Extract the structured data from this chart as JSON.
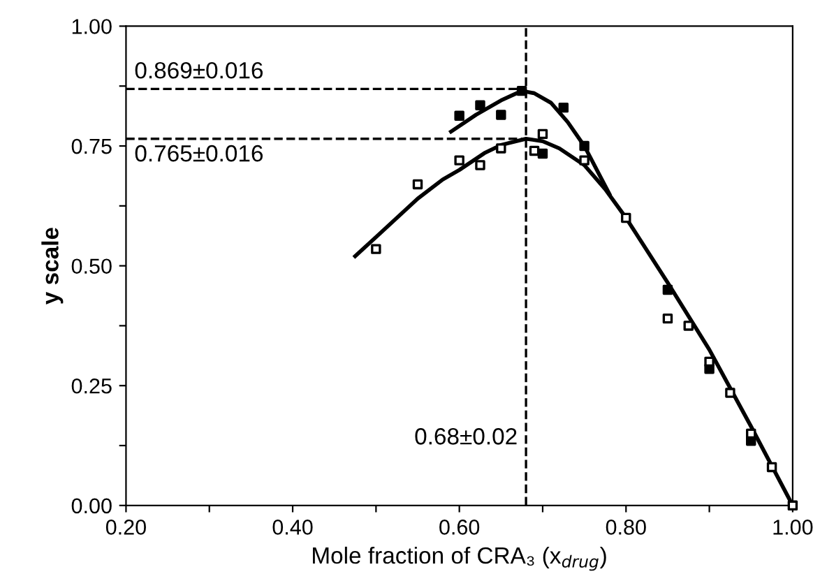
{
  "chart_data": {
    "type": "scatter",
    "xlabel": "Mole fraction of CRA₃ (x$_{drug}$)",
    "ylabel": "y scale",
    "xlim": [
      0.2,
      1.0
    ],
    "ylim": [
      0.0,
      1.0
    ],
    "xticks": [
      {
        "value": 0.2,
        "label": "0.20"
      },
      {
        "value": 0.3,
        "label": null
      },
      {
        "value": 0.4,
        "label": "0.40"
      },
      {
        "value": 0.5,
        "label": null
      },
      {
        "value": 0.6,
        "label": "0.60"
      },
      {
        "value": 0.7,
        "label": null
      },
      {
        "value": 0.8,
        "label": "0.80"
      },
      {
        "value": 0.9,
        "label": null
      },
      {
        "value": 1.0,
        "label": "1.00"
      }
    ],
    "yticks": [
      {
        "value": 0.0,
        "label": "0.00"
      },
      {
        "value": 0.125,
        "label": null
      },
      {
        "value": 0.25,
        "label": "0.25"
      },
      {
        "value": 0.375,
        "label": null
      },
      {
        "value": 0.5,
        "label": "0.50"
      },
      {
        "value": 0.625,
        "label": null
      },
      {
        "value": 0.75,
        "label": "0.75"
      },
      {
        "value": 0.875,
        "label": null
      },
      {
        "value": 1.0,
        "label": "1.00"
      }
    ],
    "grid": false,
    "legend": false,
    "series": [
      {
        "marker": "square",
        "color": "#000000",
        "x": [
          0.6,
          0.625,
          0.65,
          0.675,
          0.7,
          0.725,
          0.75,
          0.8,
          0.85,
          0.9,
          0.95
        ],
        "values": [
          0.813,
          0.835,
          0.815,
          0.865,
          0.734,
          0.83,
          0.75,
          null,
          0.45,
          0.285,
          0.135
        ]
      },
      {
        "marker": "square",
        "color": "#ffffff",
        "x": [
          0.5,
          0.55,
          0.6,
          0.625,
          0.65,
          0.69,
          0.7,
          0.75,
          0.8,
          0.85,
          0.875,
          0.9,
          0.925,
          0.95,
          0.975,
          1.0
        ],
        "values": [
          0.535,
          0.67,
          0.72,
          0.71,
          0.745,
          0.74,
          0.775,
          0.72,
          0.6,
          0.39,
          0.375,
          0.3,
          0.235,
          0.15,
          0.08,
          0.0
        ]
      },
      {
        "type": "line",
        "color": "#000000",
        "x": [
          0.59,
          0.62,
          0.65,
          0.675,
          0.69,
          0.71,
          0.73,
          0.75,
          0.78
        ],
        "values": [
          0.78,
          0.815,
          0.845,
          0.865,
          0.86,
          0.84,
          0.8,
          0.75,
          0.65
        ]
      },
      {
        "type": "line",
        "color": "#000000",
        "x": [
          0.475,
          0.5,
          0.55,
          0.58,
          0.6,
          0.63,
          0.65,
          0.68,
          0.7,
          0.72,
          0.75,
          0.775,
          0.8,
          0.85,
          0.9,
          0.95,
          1.0
        ],
        "values": [
          0.52,
          0.56,
          0.64,
          0.68,
          0.7,
          0.735,
          0.752,
          0.765,
          0.76,
          0.745,
          0.71,
          0.66,
          0.6,
          0.465,
          0.325,
          0.165,
          0.0
        ]
      }
    ],
    "ref_lines": [
      {
        "axis": "y",
        "value": 0.869,
        "label": "0.869±0.016",
        "line_style": "dashed"
      },
      {
        "axis": "y",
        "value": 0.765,
        "label": "0.765±0.016",
        "line_style": "dashed"
      },
      {
        "axis": "x",
        "value": 0.68,
        "label": "0.68±0.02",
        "line_style": "dashed"
      }
    ]
  }
}
